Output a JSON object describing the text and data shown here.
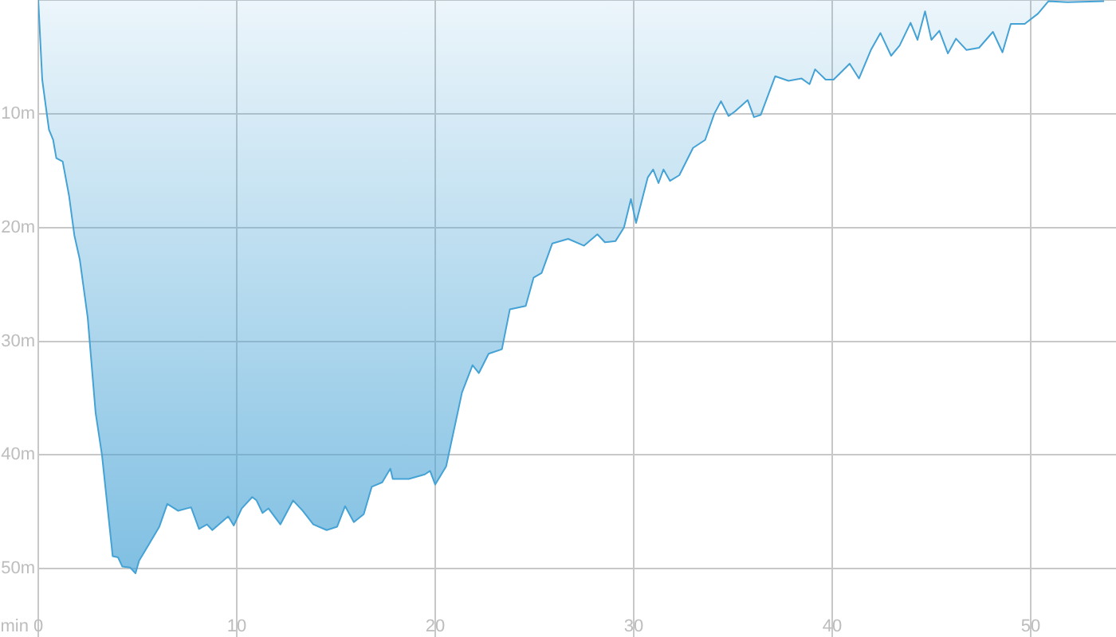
{
  "chart_data": {
    "type": "area",
    "xlabel": "min",
    "x": [
      0,
      0.2,
      0.43,
      0.54,
      0.75,
      0.91,
      1.23,
      1.55,
      1.82,
      2.09,
      2.49,
      2.89,
      3.21,
      3.75,
      4.02,
      4.23,
      4.63,
      4.9,
      5.08,
      5.56,
      6.1,
      6.5,
      7.04,
      7.7,
      8.1,
      8.5,
      8.77,
      9.57,
      9.85,
      10.25,
      10.78,
      11.0,
      11.3,
      11.6,
      12.2,
      12.84,
      13.32,
      13.86,
      14.53,
      15.06,
      15.46,
      15.9,
      16.4,
      16.8,
      17.33,
      17.74,
      17.86,
      18.67,
      19.48,
      19.74,
      20.0,
      20.55,
      21.35,
      21.88,
      22.2,
      22.69,
      23.36,
      23.76,
      24.56,
      24.96,
      25.36,
      25.9,
      26.7,
      27.5,
      28.17,
      28.55,
      29.08,
      29.51,
      29.86,
      30.12,
      30.71,
      30.98,
      31.25,
      31.5,
      31.83,
      32.3,
      32.99,
      33.6,
      34.06,
      34.4,
      34.78,
      35.1,
      35.74,
      36.06,
      36.4,
      37.13,
      37.8,
      38.46,
      38.86,
      39.14,
      39.67,
      40.07,
      40.88,
      41.35,
      41.95,
      42.43,
      42.97,
      43.4,
      43.95,
      44.3,
      44.68,
      45.0,
      45.4,
      45.83,
      46.24,
      46.77,
      47.4,
      48.1,
      48.58,
      49.0,
      49.7,
      50.37,
      50.9,
      51.85,
      53.7
    ],
    "series": [
      {
        "color": "#45a2d5",
        "values": [
          0,
          7,
          10,
          11.4,
          12.3,
          13.9,
          14.2,
          17.2,
          20.7,
          22.8,
          27.9,
          36.3,
          40,
          48.9,
          49,
          49.8,
          49.9,
          50.4,
          49.3,
          47.9,
          46.3,
          44.3,
          44.9,
          44.6,
          46.5,
          46.1,
          46.6,
          45.4,
          46.2,
          44.7,
          43.7,
          44,
          45.1,
          44.7,
          46.1,
          44,
          44.9,
          46.1,
          46.6,
          46.3,
          44.5,
          45.9,
          45.2,
          42.8,
          42.4,
          41.2,
          42.1,
          42.1,
          41.7,
          41.4,
          42.6,
          41,
          34.5,
          32.1,
          32.8,
          31.1,
          30.7,
          27.2,
          26.9,
          24.4,
          24,
          21.4,
          21,
          21.6,
          20.6,
          21.3,
          21.2,
          20,
          17.5,
          19.6,
          15.6,
          14.9,
          16.1,
          14.9,
          15.9,
          15.4,
          13,
          12.3,
          10,
          8.9,
          10.2,
          9.8,
          8.8,
          10.3,
          10.1,
          6.7,
          7.1,
          6.9,
          7.4,
          6.1,
          7,
          7,
          5.6,
          6.9,
          4.4,
          2.9,
          4.9,
          4,
          2,
          3.5,
          1,
          3.5,
          2.7,
          4.7,
          3.4,
          4.4,
          4.2,
          2.8,
          4.6,
          2.1,
          2.1,
          1.2,
          0.1,
          0.2,
          0.1
        ]
      }
    ],
    "xlim": [
      0,
      54.3
    ],
    "ylim": [
      56,
      0
    ],
    "xticks": [
      0,
      10,
      20,
      30,
      40,
      50
    ],
    "yticks": [
      {
        "value": 0,
        "label": null
      },
      {
        "value": 10,
        "label": "10m"
      },
      {
        "value": 20,
        "label": "20m"
      },
      {
        "value": 30,
        "label": "30m"
      },
      {
        "value": 40,
        "label": "40m"
      },
      {
        "value": 50,
        "label": "50m"
      }
    ],
    "grid": true
  }
}
